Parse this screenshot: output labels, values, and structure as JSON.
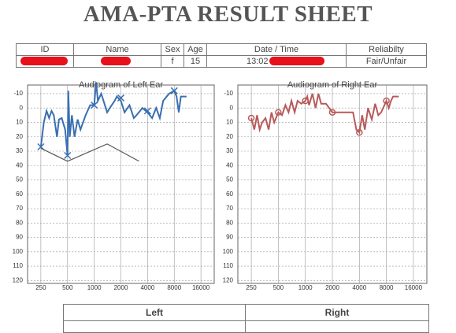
{
  "header": {
    "title": "AMA-PTA RESULT SHEET"
  },
  "info_table": {
    "headers": [
      "ID",
      "Name",
      "Sex",
      "Age",
      "Date / Time",
      "Reliabilty"
    ],
    "sex": "f",
    "age": "15",
    "time": "13:02",
    "reliability": "Fair/Unfair"
  },
  "chart_data": [
    {
      "type": "line",
      "title": "Audiogram of Left Ear",
      "xlog": true,
      "xlim": [
        177,
        22600
      ],
      "ylim": [
        -16,
        122
      ],
      "xticks": [
        250,
        500,
        1000,
        2000,
        4000,
        8000,
        16000
      ],
      "yticks": [
        -10,
        0,
        10,
        20,
        30,
        40,
        50,
        60,
        70,
        80,
        90,
        100,
        110,
        120
      ],
      "grid": true,
      "series": [
        {
          "color": "#3a6fb0",
          "x": [
            250,
            270,
            290,
            310,
            330,
            350,
            380,
            400,
            430,
            470,
            500,
            510,
            530,
            560,
            600,
            650,
            700,
            800,
            900,
            1000,
            1050,
            1100,
            1200,
            1400,
            1500,
            1700,
            1800,
            2000,
            2200,
            2500,
            2800,
            3000,
            3500,
            4000,
            4500,
            5000,
            5500,
            6000,
            7000,
            8000,
            8500,
            9000,
            9500,
            11000
          ],
          "values": [
            27,
            10,
            2,
            7,
            2,
            5,
            20,
            8,
            7,
            15,
            33,
            -12,
            20,
            5,
            20,
            8,
            15,
            5,
            -2,
            -2,
            -18,
            -5,
            -10,
            3,
            0,
            -5,
            -8,
            -5,
            3,
            -2,
            7,
            5,
            0,
            3,
            7,
            0,
            7,
            -5,
            -10,
            -12,
            -8,
            3,
            -8,
            -8
          ]
        },
        {
          "color": "#3a6fb0",
          "marker": "x",
          "x": [
            250,
            500,
            1000,
            2000,
            4000,
            8000
          ],
          "values": [
            27,
            33,
            -2,
            -7,
            2,
            -12
          ]
        },
        {
          "color": "#555555",
          "x": [
            250,
            500,
            1400,
            3200
          ],
          "values": [
            28,
            37,
            25,
            37
          ]
        }
      ]
    },
    {
      "type": "line",
      "title": "Audiogram of Right Ear",
      "xlog": true,
      "xlim": [
        177,
        22600
      ],
      "ylim": [
        -16,
        122
      ],
      "xticks": [
        250,
        500,
        1000,
        2000,
        4000,
        8000,
        16000
      ],
      "yticks": [
        -10,
        0,
        10,
        20,
        30,
        40,
        50,
        60,
        70,
        80,
        90,
        100,
        110,
        120
      ],
      "grid": true,
      "series": [
        {
          "color": "#b85a5a",
          "x": [
            250,
            270,
            290,
            310,
            330,
            360,
            390,
            420,
            450,
            500,
            550,
            600,
            650,
            700,
            760,
            820,
            900,
            1000,
            1050,
            1100,
            1200,
            1300,
            1400,
            1500,
            1700,
            2000,
            2300,
            2600,
            3000,
            3400,
            3700,
            4000,
            4300,
            4600,
            5000,
            5500,
            6000,
            6500,
            7000,
            8000,
            8500,
            9000,
            9500,
            11000
          ],
          "values": [
            7,
            15,
            5,
            15,
            10,
            7,
            15,
            3,
            10,
            3,
            5,
            -2,
            3,
            -5,
            3,
            -5,
            -3,
            -5,
            -8,
            -2,
            -10,
            0,
            -10,
            -3,
            -3,
            3,
            3,
            3,
            3,
            3,
            15,
            17,
            5,
            15,
            0,
            8,
            -3,
            5,
            3,
            -5,
            0,
            -5,
            -8,
            -8
          ]
        },
        {
          "color": "#b85a5a",
          "marker": "o",
          "x": [
            250,
            500,
            1000,
            2000,
            4000,
            8000
          ],
          "values": [
            7,
            3,
            -5,
            3,
            17,
            -5
          ]
        }
      ]
    }
  ],
  "summary_table": {
    "headers": [
      "Left",
      "Right"
    ]
  }
}
